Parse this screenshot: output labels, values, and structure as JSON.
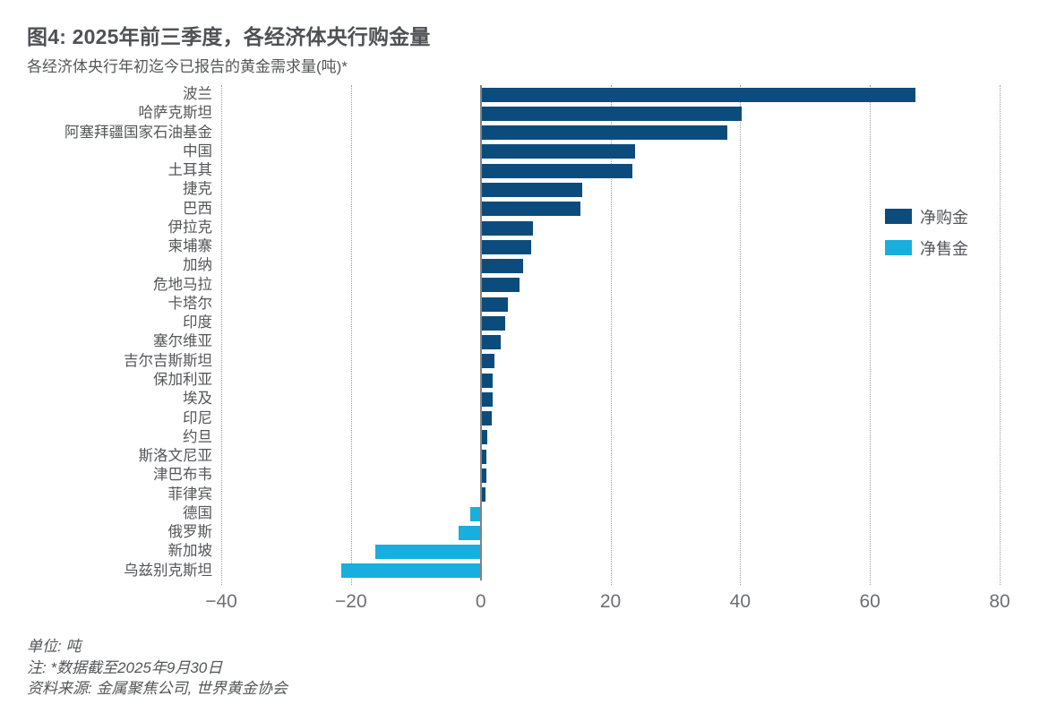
{
  "header": {
    "title": "图4: 2025年前三季度，各经济体央行购金量",
    "subtitle": "各经济体央行年初迄今已报告的黄金需求量(吨)*"
  },
  "legend": [
    {
      "label": "净购金",
      "color": "#0c4c7c"
    },
    {
      "label": "净售金",
      "color": "#18aede"
    }
  ],
  "chart_data": {
    "type": "bar",
    "orientation": "horizontal",
    "title": "图4: 2025年前三季度，各经济体央行购金量",
    "subtitle": "各经济体央行年初迄今已报告的黄金需求量(吨)*",
    "xlabel": "吨",
    "xlim": [
      -40,
      80
    ],
    "xticks": [
      -40,
      -20,
      0,
      20,
      40,
      60,
      80
    ],
    "grid": "vertical-dotted",
    "legend_position": "right-inside",
    "categories": [
      "波兰",
      "哈萨克斯坦",
      "阿塞拜疆国家石油基金",
      "中国",
      "土耳其",
      "捷克",
      "巴西",
      "伊拉克",
      "柬埔寨",
      "加纳",
      "危地马拉",
      "卡塔尔",
      "印度",
      "塞尔维亚",
      "吉尔吉斯斯坦",
      "保加利亚",
      "埃及",
      "印尼",
      "约旦",
      "斯洛文尼亚",
      "津巴布韦",
      "菲律宾",
      "德国",
      "俄罗斯",
      "新加坡",
      "乌兹别克斯坦"
    ],
    "values": [
      67,
      40.2,
      38,
      23.8,
      23.4,
      15.6,
      15.4,
      8.1,
      7.8,
      6.5,
      6.0,
      4.2,
      3.8,
      3.1,
      2.1,
      1.9,
      1.9,
      1.7,
      1.0,
      0.9,
      0.9,
      0.7,
      -1.6,
      -3.4,
      -16.2,
      -21.5
    ],
    "series_positive_name": "净购金",
    "series_negative_name": "净售金"
  },
  "footer": {
    "lines": [
      "单位: 吨",
      "注: *数据截至2025年9月30日",
      "资料来源: 金属聚焦公司, 世界黄金协会"
    ]
  },
  "colors": {
    "purchase": "#0c4c7c",
    "sale": "#18aede",
    "title_text": "#4f5155",
    "body_text": "#55565a",
    "axis_text": "#6e6f72",
    "gridline": "#9b9da0",
    "zero_line": "#808285"
  }
}
